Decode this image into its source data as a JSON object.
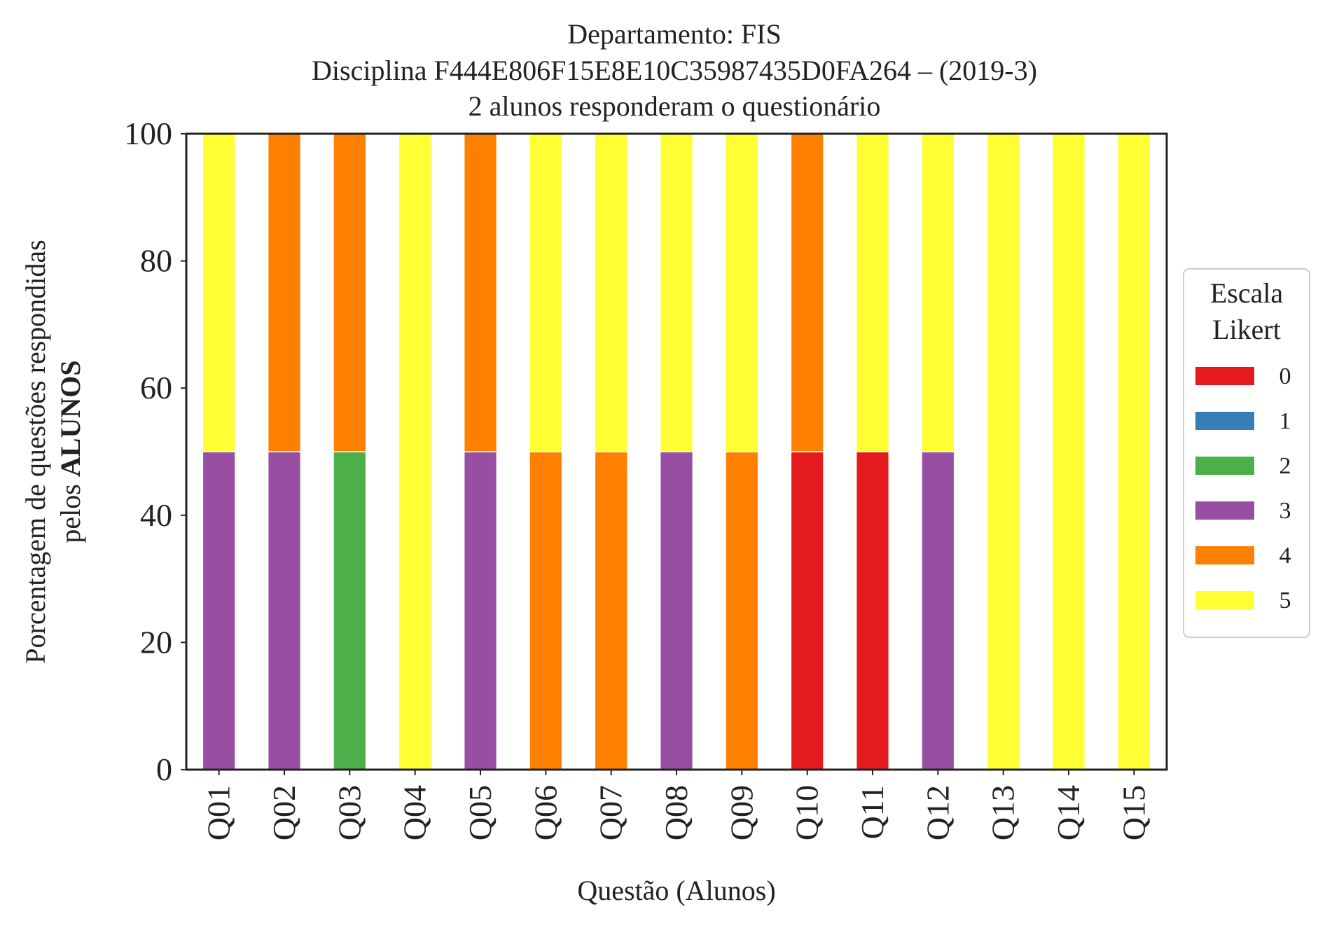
{
  "chart_data": {
    "type": "bar",
    "stacked": true,
    "title_lines": [
      "Departamento: FIS",
      "Disciplina F444E806F15E8E10C35987435D0FA264 – (2019-3)",
      "2 alunos responderam o questionário"
    ],
    "xlabel": "Questão (Alunos)",
    "ylabel_line1": "Porcentagem de questões respondidas",
    "ylabel_line2_prefix": "pelos ",
    "ylabel_line2_bold": "ALUNOS",
    "ylim": [
      0,
      100
    ],
    "yticks": [
      0,
      20,
      40,
      60,
      80,
      100
    ],
    "categories": [
      "Q01",
      "Q02",
      "Q03",
      "Q04",
      "Q05",
      "Q06",
      "Q07",
      "Q08",
      "Q09",
      "Q10",
      "Q11",
      "Q12",
      "Q13",
      "Q14",
      "Q15"
    ],
    "series": [
      {
        "name": "0",
        "color": "#e41a1c",
        "values": [
          0,
          0,
          0,
          0,
          0,
          0,
          0,
          0,
          0,
          50,
          50,
          0,
          0,
          0,
          0
        ]
      },
      {
        "name": "1",
        "color": "#377eb8",
        "values": [
          0,
          0,
          0,
          0,
          0,
          0,
          0,
          0,
          0,
          0,
          0,
          0,
          0,
          0,
          0
        ]
      },
      {
        "name": "2",
        "color": "#4daf4a",
        "values": [
          0,
          0,
          50,
          0,
          0,
          0,
          0,
          0,
          0,
          0,
          0,
          0,
          0,
          0,
          0
        ]
      },
      {
        "name": "3",
        "color": "#984ea3",
        "values": [
          50,
          50,
          0,
          0,
          50,
          0,
          0,
          50,
          0,
          0,
          0,
          50,
          0,
          0,
          0
        ]
      },
      {
        "name": "4",
        "color": "#ff7f00",
        "values": [
          0,
          50,
          50,
          0,
          50,
          50,
          50,
          0,
          50,
          50,
          0,
          0,
          0,
          0,
          0
        ]
      },
      {
        "name": "5",
        "color": "#ffff33",
        "values": [
          50,
          0,
          0,
          100,
          0,
          50,
          50,
          50,
          50,
          0,
          50,
          50,
          100,
          100,
          100
        ]
      }
    ],
    "legend": {
      "title_lines": [
        "Escala",
        "Likert"
      ],
      "placement": "center-right outside"
    },
    "grid": false
  }
}
